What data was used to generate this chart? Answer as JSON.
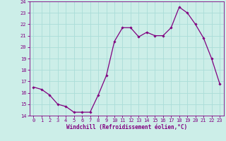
{
  "x": [
    0,
    1,
    2,
    3,
    4,
    5,
    6,
    7,
    8,
    9,
    10,
    11,
    12,
    13,
    14,
    15,
    16,
    17,
    18,
    19,
    20,
    21,
    22,
    23
  ],
  "y": [
    16.5,
    16.3,
    15.8,
    15.0,
    14.8,
    14.3,
    14.3,
    14.3,
    15.8,
    17.5,
    20.5,
    21.7,
    21.7,
    20.9,
    21.3,
    21.0,
    21.0,
    21.7,
    23.5,
    23.0,
    22.0,
    20.8,
    19.0,
    16.8
  ],
  "line_color": "#800080",
  "marker": "D",
  "marker_size": 1.8,
  "bg_color": "#cceee8",
  "grid_color": "#aaddd8",
  "xlabel": "Windchill (Refroidissement éolien,°C)",
  "ylim": [
    14,
    24
  ],
  "xlim": [
    -0.5,
    23.5
  ],
  "yticks": [
    14,
    15,
    16,
    17,
    18,
    19,
    20,
    21,
    22,
    23,
    24
  ],
  "xticks": [
    0,
    1,
    2,
    3,
    4,
    5,
    6,
    7,
    8,
    9,
    10,
    11,
    12,
    13,
    14,
    15,
    16,
    17,
    18,
    19,
    20,
    21,
    22,
    23
  ],
  "tick_color": "#800080",
  "label_fontsize": 5.5,
  "tick_fontsize": 5.0
}
